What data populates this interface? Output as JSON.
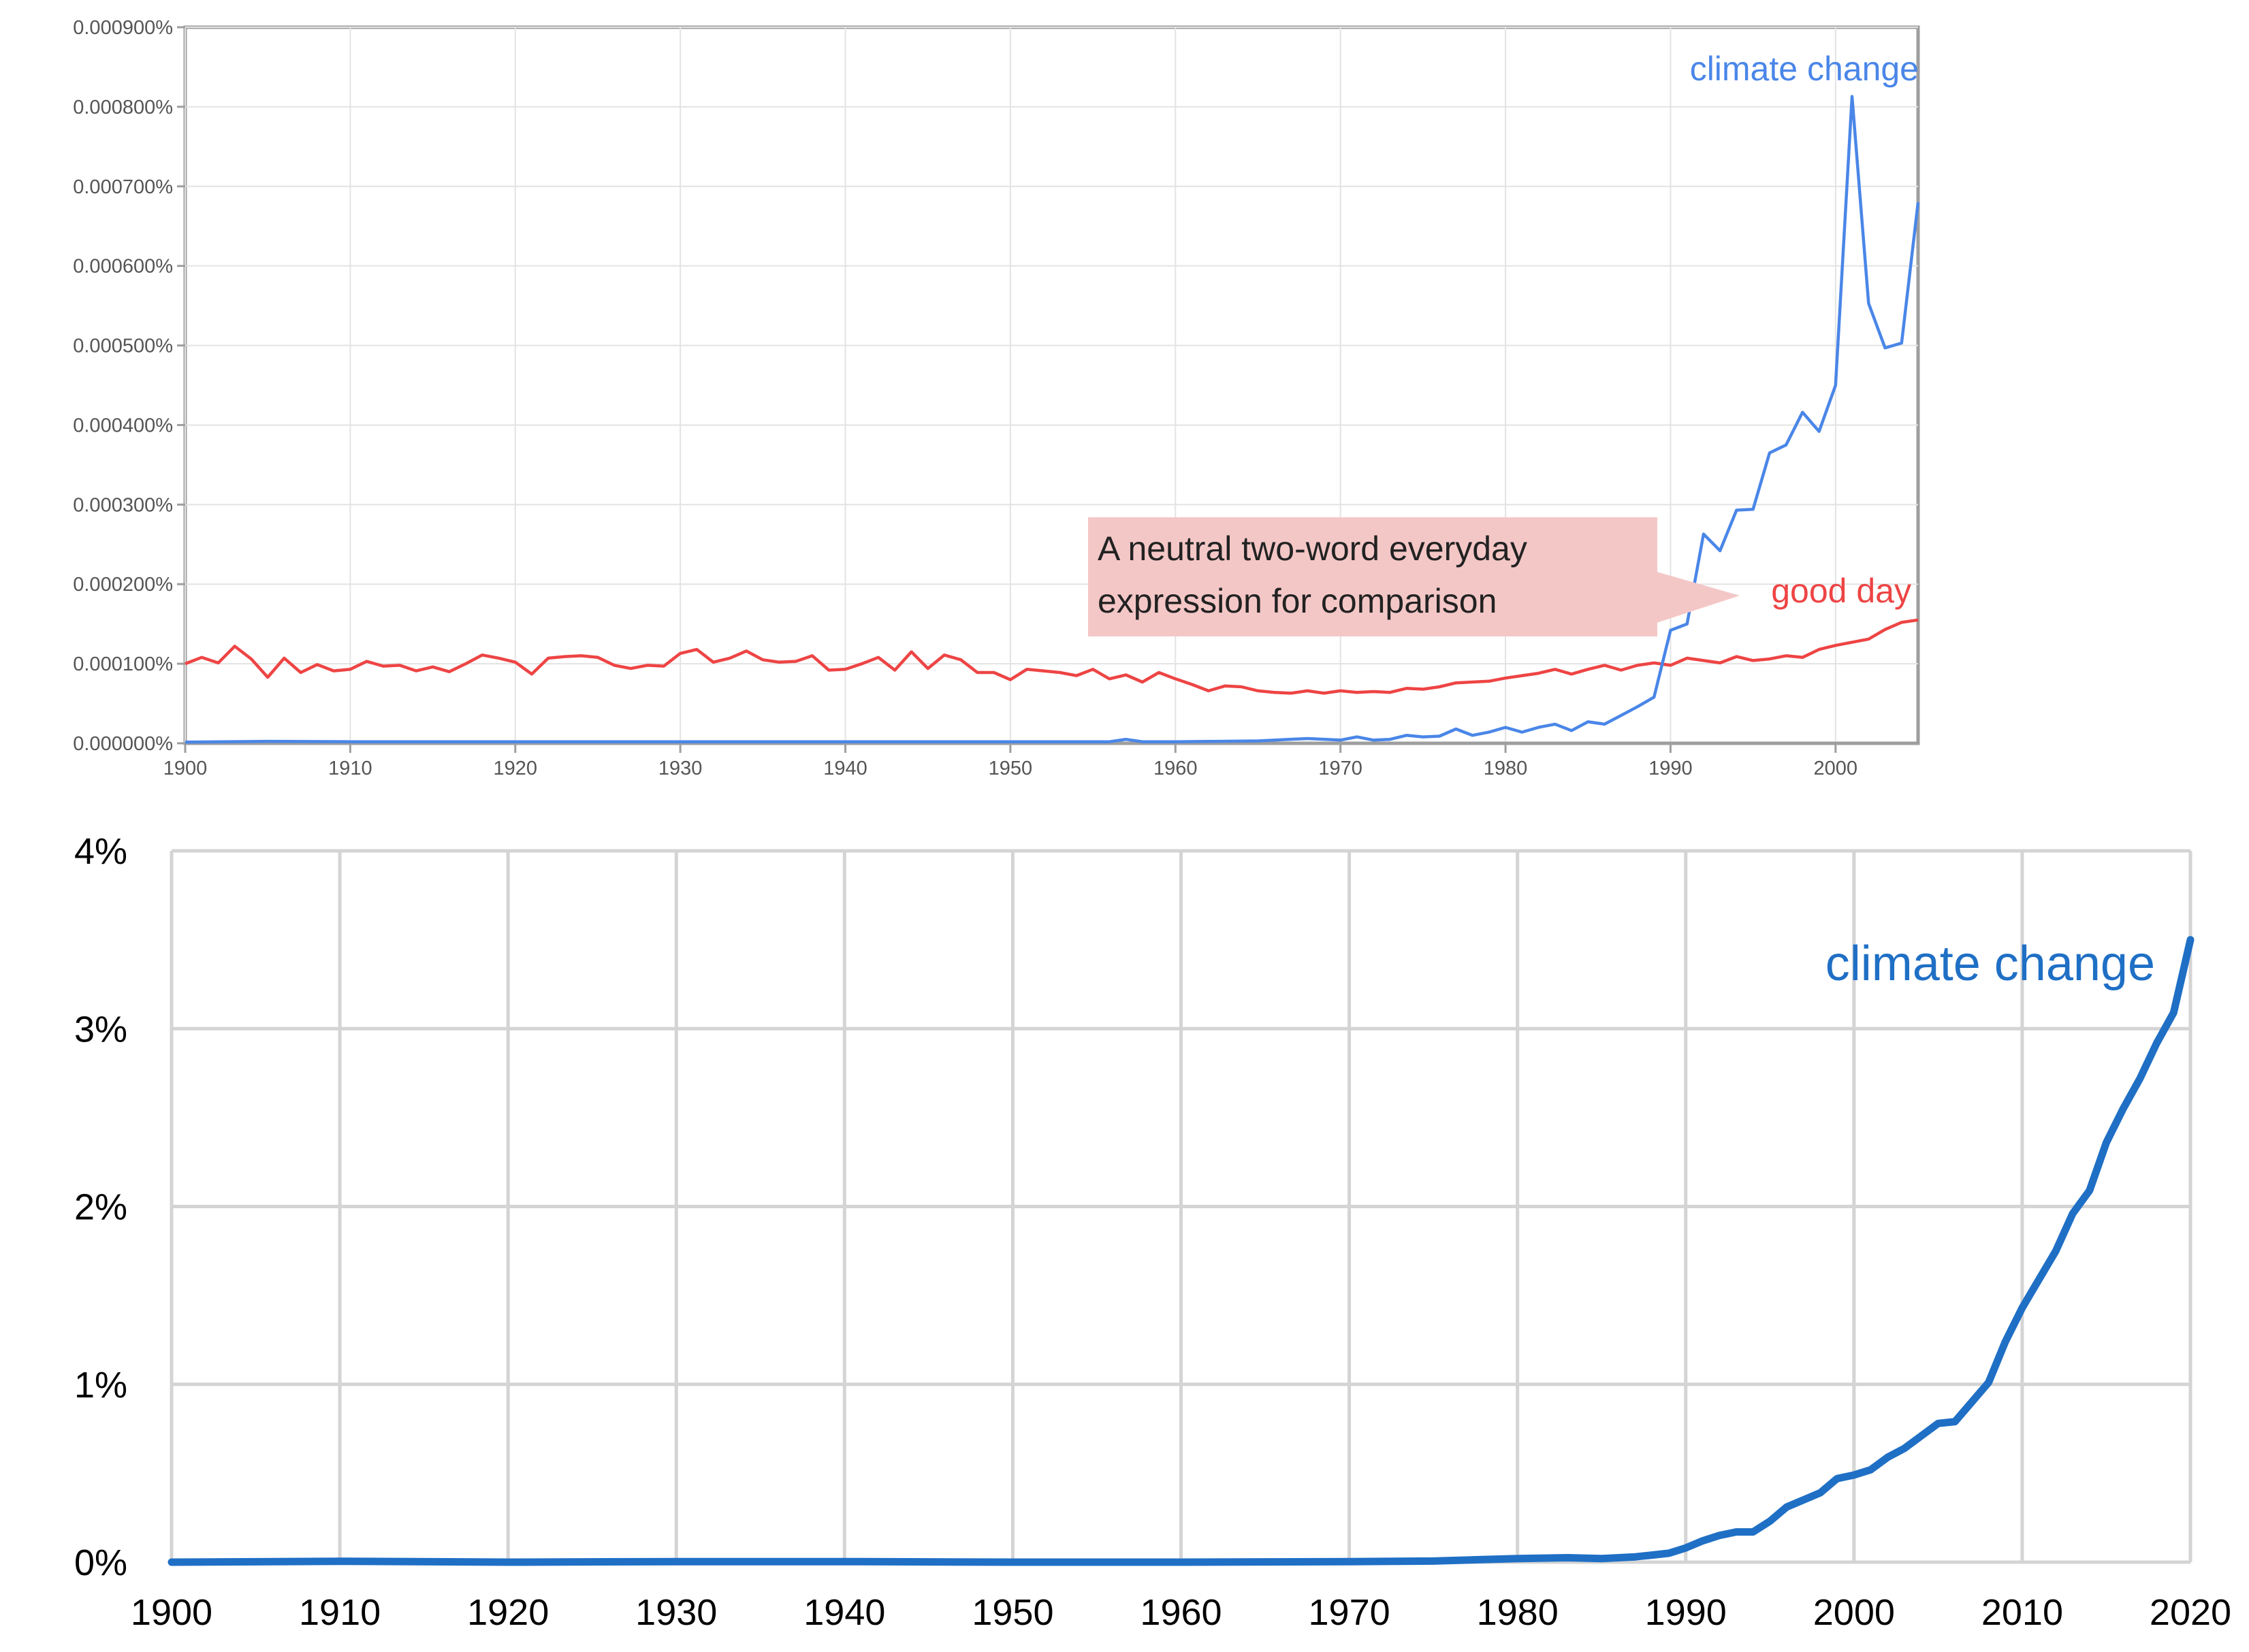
{
  "chart_data": [
    {
      "type": "line",
      "title": "",
      "xlabel": "",
      "ylabel": "",
      "xlim": [
        1900,
        2005
      ],
      "ylim": [
        0,
        0.0009
      ],
      "y_tick_labels": [
        "0.000000%",
        "0.000100%",
        "0.000200%",
        "0.000300%",
        "0.000400%",
        "0.000500%",
        "0.000600%",
        "0.000700%",
        "0.000800%",
        "0.000900%"
      ],
      "x_tick_labels": [
        "1900",
        "1910",
        "1920",
        "1930",
        "1940",
        "1950",
        "1960",
        "1970",
        "1980",
        "1990",
        "2000"
      ],
      "grid": true,
      "series": [
        {
          "name": "climate change",
          "color": "#4a86e8",
          "x": [
            1900,
            1905,
            1910,
            1915,
            1920,
            1925,
            1930,
            1935,
            1940,
            1945,
            1950,
            1955,
            1956,
            1957,
            1958,
            1960,
            1965,
            1968,
            1970,
            1971,
            1972,
            1973,
            1974,
            1975,
            1976,
            1977,
            1978,
            1979,
            1980,
            1981,
            1982,
            1983,
            1984,
            1985,
            1986,
            1987,
            1988,
            1989,
            1990,
            1991,
            1992,
            1993,
            1994,
            1995,
            1996,
            1997,
            1998,
            1999,
            2000,
            2001,
            2002,
            2003,
            2004,
            2005
          ],
          "y": [
            1.5e-06,
            2.5e-06,
            2e-06,
            2e-06,
            2e-06,
            2e-06,
            2e-06,
            2e-06,
            2e-06,
            2e-06,
            2e-06,
            2e-06,
            2e-06,
            5e-06,
            2e-06,
            2e-06,
            3e-06,
            6e-06,
            4e-06,
            8e-06,
            4e-06,
            5e-06,
            1e-05,
            8e-06,
            9e-06,
            1.8e-05,
            1e-05,
            1.4e-05,
            2e-05,
            1.4e-05,
            2e-05,
            2.4e-05,
            1.6e-05,
            2.7e-05,
            2.4e-05,
            3.5e-05,
            4.6e-05,
            5.8e-05,
            0.000142,
            0.00015,
            0.000263,
            0.000242,
            0.000293,
            0.000294,
            0.000365,
            0.000375,
            0.000416,
            0.000392,
            0.00045,
            0.000813,
            0.000553,
            0.000497,
            0.000503,
            0.00068
          ]
        },
        {
          "name": "good day",
          "color": "#ee4444",
          "x": [
            1900,
            1901,
            1902,
            1903,
            1904,
            1905,
            1906,
            1907,
            1908,
            1909,
            1910,
            1911,
            1912,
            1913,
            1914,
            1915,
            1916,
            1917,
            1918,
            1919,
            1920,
            1921,
            1922,
            1923,
            1924,
            1925,
            1926,
            1927,
            1928,
            1929,
            1930,
            1931,
            1932,
            1933,
            1934,
            1935,
            1936,
            1937,
            1938,
            1939,
            1940,
            1941,
            1942,
            1943,
            1944,
            1945,
            1946,
            1947,
            1948,
            1949,
            1950,
            1951,
            1952,
            1953,
            1954,
            1955,
            1956,
            1957,
            1958,
            1959,
            1960,
            1961,
            1962,
            1963,
            1964,
            1965,
            1966,
            1967,
            1968,
            1969,
            1970,
            1971,
            1972,
            1973,
            1974,
            1975,
            1976,
            1977,
            1978,
            1979,
            1980,
            1981,
            1982,
            1983,
            1984,
            1985,
            1986,
            1987,
            1988,
            1989,
            1990,
            1991,
            1992,
            1993,
            1994,
            1995,
            1996,
            1997,
            1998,
            1999,
            2000,
            2001,
            2002,
            2003,
            2004,
            2005
          ],
          "y": [
            0.0001,
            0.000108,
            0.000101,
            0.000122,
            0.000106,
            8.3e-05,
            0.000107,
            8.9e-05,
            9.9e-05,
            9.1e-05,
            9.3e-05,
            0.000103,
            9.7e-05,
            9.8e-05,
            9.1e-05,
            9.6e-05,
            9e-05,
            0.0001,
            0.000111,
            0.000107,
            0.000102,
            8.7e-05,
            0.000107,
            0.000109,
            0.00011,
            0.000108,
            9.8e-05,
            9.4e-05,
            9.8e-05,
            9.7e-05,
            0.000113,
            0.000118,
            0.000102,
            0.000107,
            0.000116,
            0.000105,
            0.000102,
            0.000103,
            0.00011,
            9.2e-05,
            9.3e-05,
            0.0001,
            0.000108,
            9.2e-05,
            0.000115,
            9.4e-05,
            0.000111,
            0.000105,
            8.9e-05,
            8.9e-05,
            8e-05,
            9.3e-05,
            9.1e-05,
            8.9e-05,
            8.5e-05,
            9.3e-05,
            8.1e-05,
            8.6e-05,
            7.7e-05,
            8.9e-05,
            8.1e-05,
            7.4e-05,
            6.6e-05,
            7.2e-05,
            7.1e-05,
            6.6e-05,
            6.4e-05,
            6.3e-05,
            6.6e-05,
            6.3e-05,
            6.6e-05,
            6.4e-05,
            6.5e-05,
            6.4e-05,
            6.9e-05,
            6.8e-05,
            7.1e-05,
            7.6e-05,
            7.7e-05,
            7.8e-05,
            8.2e-05,
            8.5e-05,
            8.8e-05,
            9.3e-05,
            8.7e-05,
            9.3e-05,
            9.8e-05,
            9.2e-05,
            9.8e-05,
            0.000101,
            9.8e-05,
            0.000107,
            0.000104,
            0.000101,
            0.000109,
            0.000104,
            0.000106,
            0.00011,
            0.000108,
            0.000118,
            0.000123,
            0.000127,
            0.000131,
            0.000143,
            0.000152,
            0.000155
          ]
        }
      ],
      "annotations": [
        {
          "text_lines": [
            "A neutral two-word everyday",
            "expression for comparison"
          ],
          "points_to": "good day"
        }
      ]
    },
    {
      "type": "line",
      "title": "",
      "xlabel": "",
      "ylabel": "",
      "xlim": [
        1900,
        2020
      ],
      "ylim": [
        0,
        4
      ],
      "y_tick_labels": [
        "0%",
        "1%",
        "2%",
        "3%",
        "4%"
      ],
      "x_tick_labels": [
        "1900",
        "1910",
        "1920",
        "1930",
        "1940",
        "1950",
        "1960",
        "1970",
        "1980",
        "1990",
        "2000",
        "2010",
        "2020"
      ],
      "grid": true,
      "series": [
        {
          "name": "climate change",
          "color": "#1f6fc5",
          "x": [
            1900,
            1910,
            1920,
            1930,
            1940,
            1950,
            1960,
            1970,
            1975,
            1978,
            1980,
            1983,
            1985,
            1987,
            1988,
            1989,
            1990,
            1991,
            1992,
            1993,
            1994,
            1995,
            1996,
            1997,
            1998,
            1999,
            2000,
            2001,
            2002,
            2003,
            2004,
            2005,
            2006,
            2007,
            2008,
            2009,
            2010,
            2011,
            2012,
            2013,
            2014,
            2015,
            2016,
            2017,
            2018,
            2019,
            2020
          ],
          "y": [
            0,
            0.005,
            0,
            0.003,
            0.003,
            0,
            0,
            0.003,
            0.006,
            0.015,
            0.02,
            0.025,
            0.02,
            0.03,
            0.04,
            0.05,
            0.08,
            0.12,
            0.15,
            0.17,
            0.17,
            0.23,
            0.31,
            0.35,
            0.39,
            0.47,
            0.49,
            0.52,
            0.59,
            0.64,
            0.71,
            0.78,
            0.79,
            0.9,
            1.01,
            1.24,
            1.43,
            1.59,
            1.75,
            1.96,
            2.09,
            2.36,
            2.55,
            2.72,
            2.92,
            3.09,
            3.5
          ]
        }
      ]
    }
  ]
}
